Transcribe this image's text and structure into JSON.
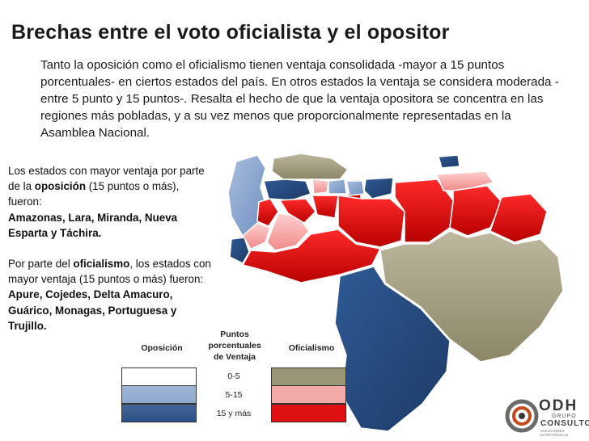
{
  "title": "Brechas entre el voto oficialista y el opositor",
  "intro": "Tanto la oposición como el oficialismo tienen ventaja consolidada -mayor a 15 puntos porcentuales- en ciertos estados del país. En otros estados la ventaja se considera moderada -entre 5 punto y 15 puntos-. Resalta el hecho de que la ventaja opositora se concentra en las regiones más pobladas, y a su vez menos que proporcionalmente representadas en la Asamblea Nacional.",
  "side": {
    "opp_pre": "Los estados con mayor ventaja por parte de la ",
    "opp_bold": "oposición",
    "opp_post": " (15 puntos o más), fueron:",
    "opp_states": "Amazonas, Lara, Miranda, Nueva Esparta y Táchira.",
    "off_pre": "Por parte del ",
    "off_bold": "oficialismo",
    "off_post": ", los estados con mayor ventaja (15 puntos o más) fueron:",
    "off_states": "Apure, Cojedes, Delta Amacuro, Guárico, Monagas, Portuguesa y Trujillo."
  },
  "legend": {
    "opposition": "Oposición",
    "points": "Puntos porcentuales de Ventaja",
    "officialism": "Oficialismo",
    "levels": [
      "0-5",
      "5-15",
      "15 y más"
    ],
    "colors_opposition": [
      "#ffffff",
      "#8fa9cf",
      "#2a4f86"
    ],
    "colors_officialism": [
      "#9c9678",
      "#f4a9a9",
      "#dd1111"
    ]
  },
  "logo": {
    "brand": "ODH",
    "line1": "GRUPO",
    "line2": "CONSULTOR",
    "line3": "SOLUCIONES ESTRATÉGICAS"
  }
}
